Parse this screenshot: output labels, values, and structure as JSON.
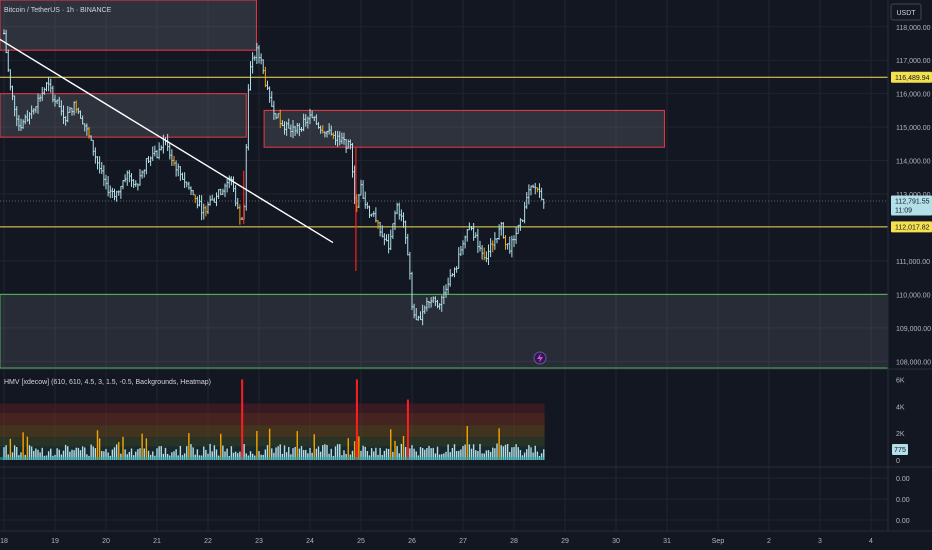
{
  "header": {
    "symbol_title": "Bitcoin / TetherUS · 1h · BINANCE",
    "currency": "USDT"
  },
  "indicator": {
    "label": "HMV [xdecow] (610, 610, 4.5, 3, 1.5, -0.5, Backgrounds, Heatmap)",
    "current_value": "775"
  },
  "colors": {
    "background": "#131722",
    "grid": "#1f2430",
    "candle": "#b2dfe8",
    "resistance_zone_border": "#f23645",
    "support_zone_border": "#4caf50",
    "horizontal_level": "#f5e050",
    "trendline": "#ffffff",
    "price_tag": "#b2dfe8",
    "volume_normal": "#b2dfe8",
    "volume_high": "#f7a400",
    "volume_extreme": "#ff1e1e"
  },
  "chart_data": [
    {
      "type": "candlestick",
      "title": "Bitcoin / TetherUS · 1h · BINANCE",
      "x_ticks": [
        "18",
        "19",
        "20",
        "21",
        "22",
        "23",
        "24",
        "25",
        "26",
        "27",
        "28",
        "29",
        "30",
        "31",
        "Sep",
        "2",
        "3",
        "4"
      ],
      "y_ticks": [
        "118,000.00",
        "117,000.00",
        "116,000.00",
        "115,000.00",
        "114,000.00",
        "113,000.00",
        "111,000.00",
        "110,000.00",
        "109,000.00",
        "108,000.00"
      ],
      "ylim": [
        107800,
        118800
      ],
      "price_labels": [
        {
          "value": 116489.94,
          "text": "116,489.94",
          "kind": "level"
        },
        {
          "value": 112791.55,
          "text": "112,791.55",
          "kind": "last",
          "countdown": "11:09"
        },
        {
          "value": 112017.82,
          "text": "112,017.82",
          "kind": "level"
        }
      ],
      "horizontal_levels": [
        116489.94,
        112017.82,
        110000
      ],
      "zones": [
        {
          "name": "resistance-zone-top",
          "x_start": -0.6,
          "x_end": 4.95,
          "y_low": 117300,
          "y_high": 118800,
          "kind": "resistance"
        },
        {
          "name": "resistance-zone-mid",
          "x_start": -0.15,
          "x_end": 4.75,
          "y_low": 114700,
          "y_high": 116000,
          "kind": "resistance"
        },
        {
          "name": "resistance-zone-right",
          "x_start": 5.1,
          "x_end": 12.95,
          "y_low": 114400,
          "y_high": 115500,
          "kind": "resistance"
        },
        {
          "name": "support-zone-left",
          "x_start": -0.6,
          "x_end": -0.3,
          "y_low": 113900,
          "y_high": 115600,
          "kind": "support"
        },
        {
          "name": "support-zone-bottom",
          "x_start": -0.6,
          "x_end": 17.4,
          "y_low": 107800,
          "y_high": 110000,
          "kind": "support"
        }
      ],
      "trendline": {
        "from": [
          -0.7,
          118200
        ],
        "to": [
          6.45,
          111550
        ]
      },
      "price_series": [
        [
          0.0,
          117800
        ],
        [
          0.12,
          116200
        ],
        [
          0.3,
          115000
        ],
        [
          0.5,
          115400
        ],
        [
          0.7,
          115900
        ],
        [
          0.85,
          116300
        ],
        [
          1.0,
          115800
        ],
        [
          1.2,
          115300
        ],
        [
          1.4,
          115700
        ],
        [
          1.6,
          115000
        ],
        [
          1.8,
          114100
        ],
        [
          2.0,
          113200
        ],
        [
          2.2,
          113000
        ],
        [
          2.4,
          113600
        ],
        [
          2.6,
          113300
        ],
        [
          2.8,
          114000
        ],
        [
          3.0,
          114200
        ],
        [
          3.15,
          114600
        ],
        [
          3.3,
          114000
        ],
        [
          3.5,
          113500
        ],
        [
          3.7,
          113000
        ],
        [
          3.9,
          112500
        ],
        [
          4.1,
          112800
        ],
        [
          4.3,
          113200
        ],
        [
          4.45,
          113500
        ],
        [
          4.6,
          112400
        ],
        [
          4.7,
          112200
        ],
        [
          4.8,
          116600
        ],
        [
          4.95,
          117300
        ],
        [
          5.05,
          116900
        ],
        [
          5.2,
          115800
        ],
        [
          5.4,
          115200
        ],
        [
          5.6,
          114900
        ],
        [
          5.8,
          115000
        ],
        [
          6.0,
          115300
        ],
        [
          6.2,
          115000
        ],
        [
          6.4,
          114800
        ],
        [
          6.6,
          114600
        ],
        [
          6.8,
          114400
        ],
        [
          6.9,
          112500
        ],
        [
          7.0,
          113200
        ],
        [
          7.1,
          112600
        ],
        [
          7.25,
          112300
        ],
        [
          7.4,
          111800
        ],
        [
          7.55,
          111400
        ],
        [
          7.7,
          112700
        ],
        [
          7.85,
          112000
        ],
        [
          7.95,
          110700
        ],
        [
          8.0,
          109600
        ],
        [
          8.1,
          109100
        ],
        [
          8.25,
          109700
        ],
        [
          8.4,
          109900
        ],
        [
          8.55,
          109700
        ],
        [
          8.7,
          110400
        ],
        [
          8.85,
          110700
        ],
        [
          9.0,
          111600
        ],
        [
          9.15,
          112000
        ],
        [
          9.3,
          111500
        ],
        [
          9.45,
          111100
        ],
        [
          9.6,
          111600
        ],
        [
          9.75,
          112000
        ],
        [
          9.9,
          111300
        ],
        [
          10.0,
          111700
        ],
        [
          10.15,
          112200
        ],
        [
          10.3,
          113100
        ],
        [
          10.45,
          113200
        ],
        [
          10.6,
          112791.55
        ]
      ],
      "wicks": [
        {
          "x": 4.7,
          "low": 112100,
          "high": 113700,
          "color": "red"
        },
        {
          "x": 6.9,
          "low": 110700,
          "high": 114400,
          "color": "red"
        }
      ]
    },
    {
      "type": "bar",
      "title": "HMV [xdecow] (610, 610, 4.5, 3, 1.5, -0.5, Backgrounds, Heatmap)",
      "y_ticks": [
        "6K",
        "4K",
        "2K",
        "0"
      ],
      "ylim": [
        0,
        6700
      ],
      "spikes": [
        {
          "x": 4.67,
          "value": 6000,
          "level": "extreme"
        },
        {
          "x": 6.92,
          "value": 6000,
          "level": "extreme"
        },
        {
          "x": 7.92,
          "value": 4500,
          "level": "extreme"
        }
      ],
      "heatmap_band_top": 4200,
      "last_value": 775
    },
    {
      "type": "line",
      "y_ticks": [
        "0.00",
        "0.00",
        "0.00"
      ]
    }
  ]
}
